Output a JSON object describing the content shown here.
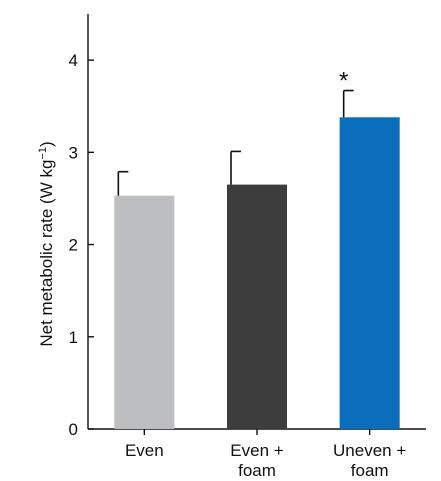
{
  "chart_data": {
    "type": "bar",
    "categories": [
      [
        "Even"
      ],
      [
        "Even +",
        "foam"
      ],
      [
        "Uneven +",
        "foam"
      ]
    ],
    "values": [
      2.53,
      2.65,
      3.38
    ],
    "errors": [
      0.26,
      0.36,
      0.29
    ],
    "colors": [
      "#bcbec0",
      "#3d3d3d",
      "#0a6ebd"
    ],
    "annotations": [
      "",
      "",
      "*"
    ],
    "ylabel": "Net metabolic rate (W kg",
    "ylabel_sup": "−1",
    "ylabel_end": ")",
    "ylim": [
      0,
      4.5
    ],
    "yticks": [
      0,
      1,
      2,
      3,
      4
    ],
    "grid": false,
    "legend": "none"
  }
}
